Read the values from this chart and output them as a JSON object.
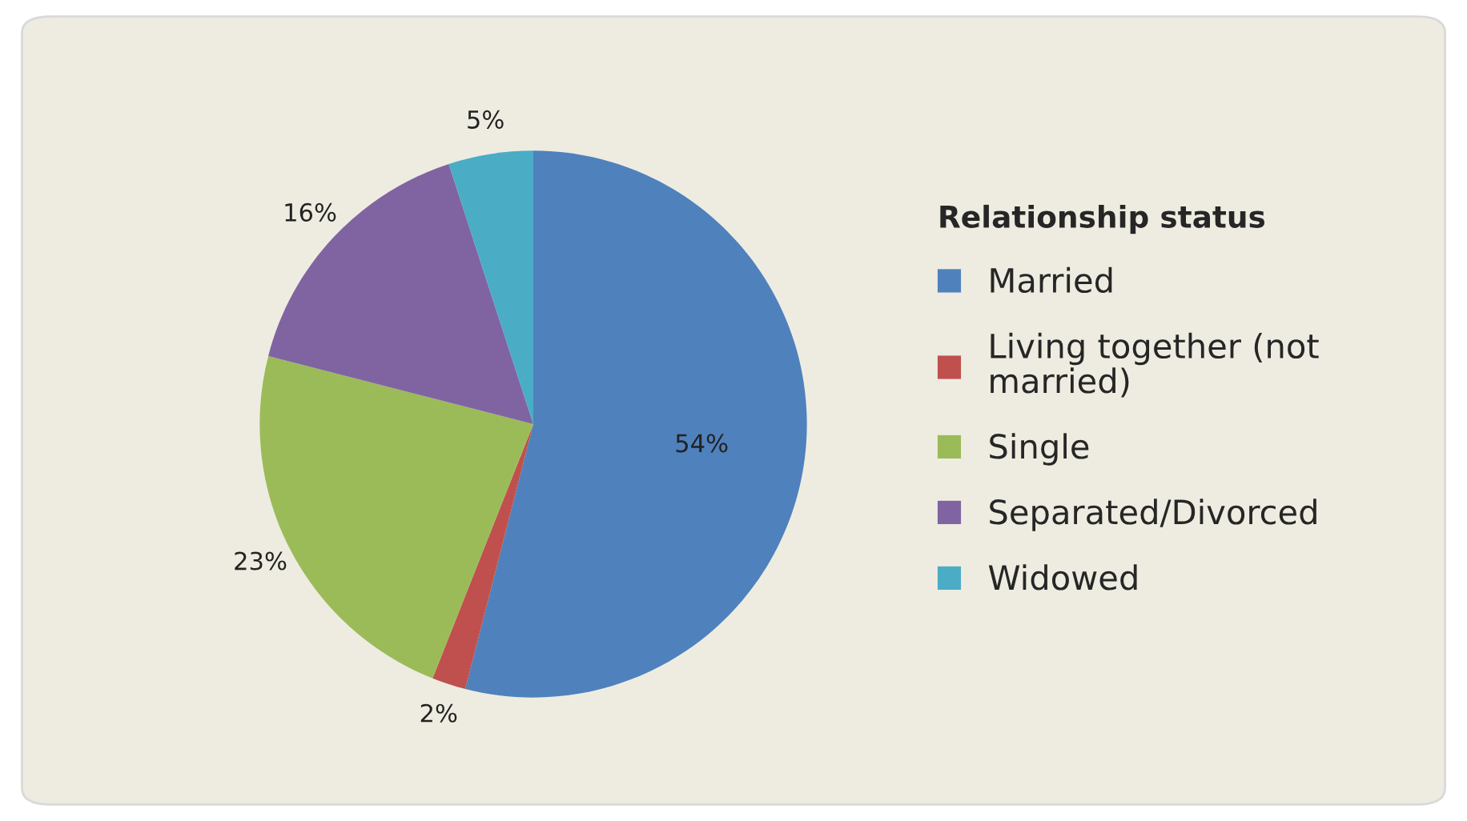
{
  "chart_data": {
    "type": "pie",
    "legend_title": "Relationship status",
    "categories": [
      "Married",
      "Living together (not married)",
      "Single",
      "Separated/Divorced",
      "Widowed"
    ],
    "values": [
      54,
      2,
      23,
      16,
      5
    ],
    "value_labels": [
      "54%",
      "2%",
      "23%",
      "16%",
      "5%"
    ],
    "colors": [
      "#4f81bd",
      "#c0504d",
      "#9bbb59",
      "#8064a2",
      "#4bacc6"
    ],
    "legend": "right"
  }
}
